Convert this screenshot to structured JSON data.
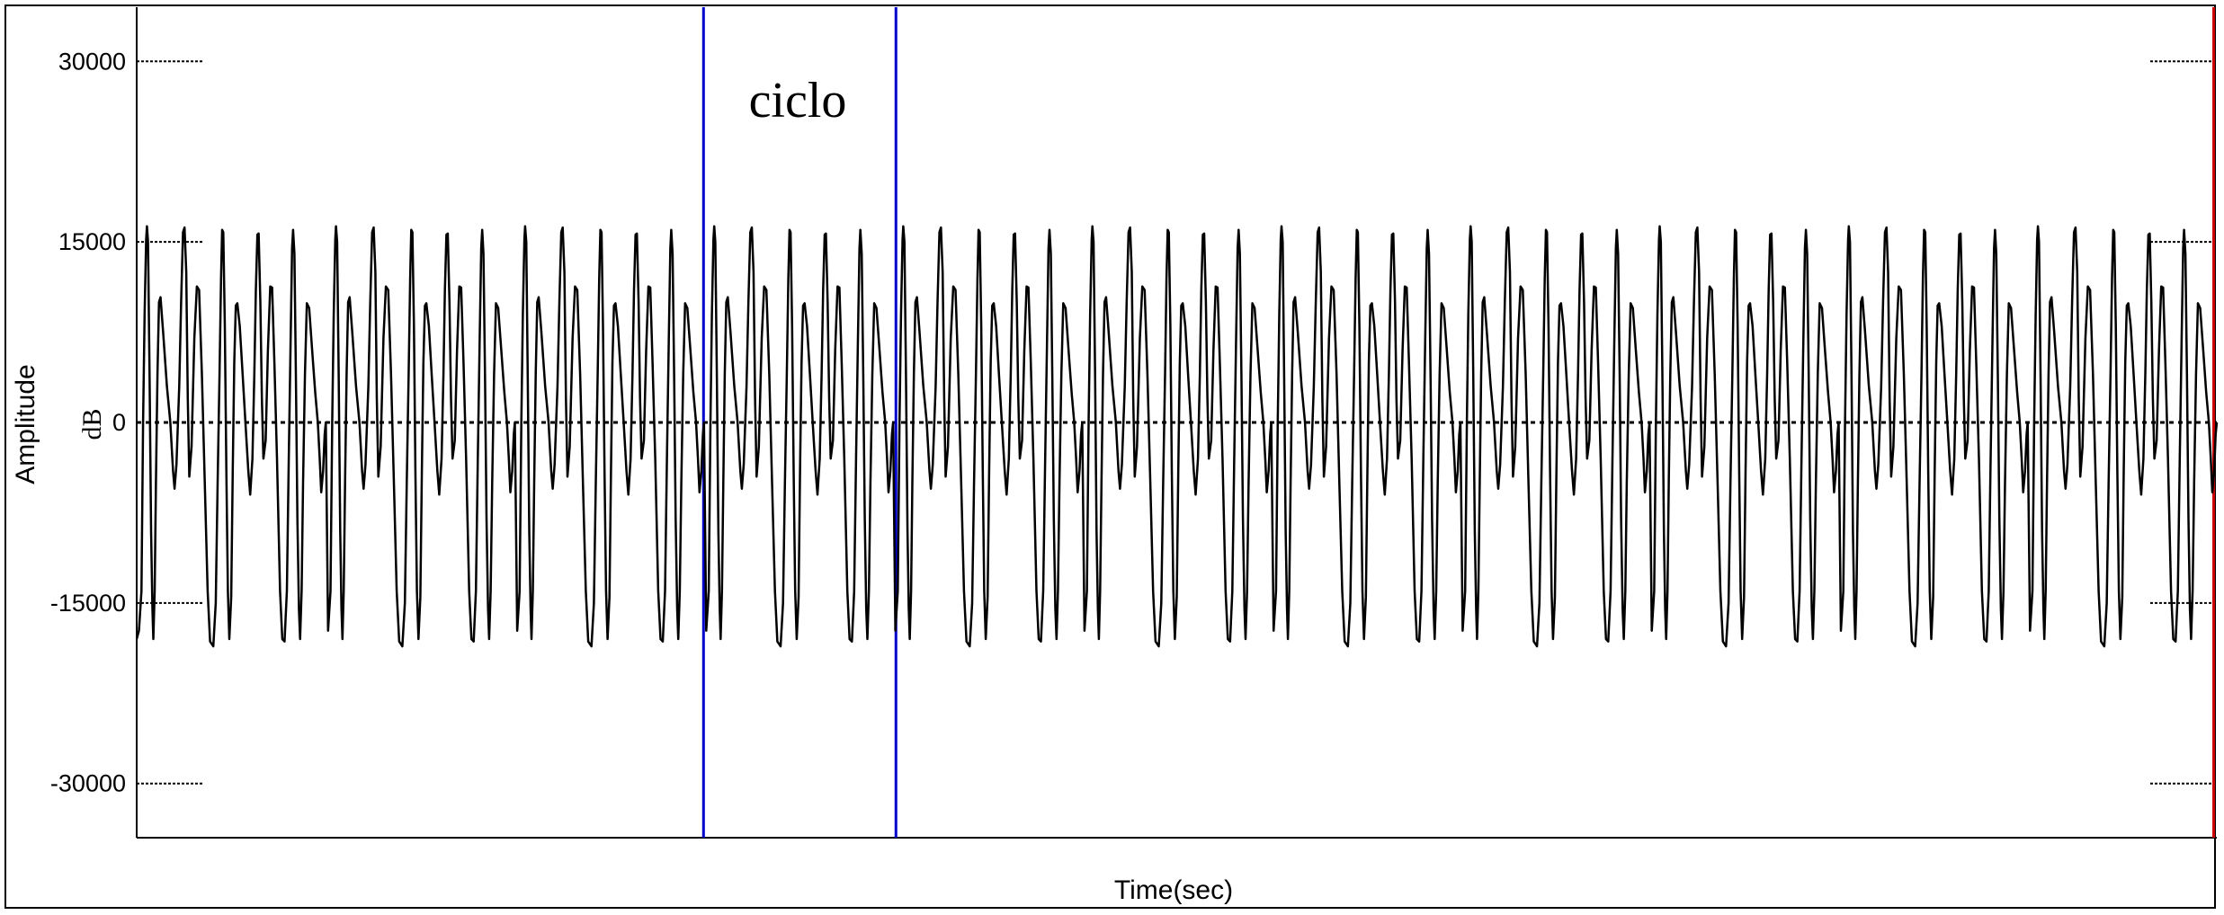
{
  "chart_data": {
    "type": "line",
    "title": "",
    "xlabel": "Time(sec)",
    "ylabel": "Amplitude",
    "ylabel_unit": "dB",
    "ylim": [
      -34500,
      34500
    ],
    "yticks": [
      30000,
      15000,
      0,
      -15000,
      -30000
    ],
    "ytick_labels": [
      "30000",
      "15000",
      "0",
      "-15000",
      "-30000"
    ],
    "xlim": [
      0,
      1
    ],
    "grid": false,
    "zero_line": "dotted",
    "annotation": "ciclo",
    "markers": [
      {
        "x": 0.2725,
        "color": "#0000cc"
      },
      {
        "x": 0.365,
        "color": "#0000cc"
      },
      {
        "x": 0.9985,
        "color": "#cc0000"
      }
    ],
    "cycles": 11,
    "cycle_shape": [
      [
        0.0,
        -18000
      ],
      [
        0.012,
        -17300
      ],
      [
        0.025,
        -14000
      ],
      [
        0.034,
        0
      ],
      [
        0.042,
        9000
      ],
      [
        0.05,
        15200
      ],
      [
        0.054,
        16300
      ],
      [
        0.06,
        15000
      ],
      [
        0.068,
        4000
      ],
      [
        0.076,
        -9000
      ],
      [
        0.083,
        -15500
      ],
      [
        0.088,
        -18000
      ],
      [
        0.095,
        -14000
      ],
      [
        0.102,
        -5000
      ],
      [
        0.11,
        4000
      ],
      [
        0.118,
        10000
      ],
      [
        0.126,
        10400
      ],
      [
        0.14,
        7500
      ],
      [
        0.16,
        3000
      ],
      [
        0.178,
        0
      ],
      [
        0.192,
        -4000
      ],
      [
        0.2,
        -5500
      ],
      [
        0.21,
        -3500
      ],
      [
        0.225,
        3000
      ],
      [
        0.235,
        10000
      ],
      [
        0.245,
        15800
      ],
      [
        0.253,
        16200
      ],
      [
        0.262,
        12500
      ],
      [
        0.27,
        2000
      ],
      [
        0.278,
        -4500
      ],
      [
        0.29,
        -2000
      ],
      [
        0.305,
        7000
      ],
      [
        0.318,
        11300
      ],
      [
        0.33,
        11000
      ],
      [
        0.345,
        4000
      ],
      [
        0.36,
        -5000
      ],
      [
        0.375,
        -14000
      ],
      [
        0.388,
        -18200
      ],
      [
        0.405,
        -18600
      ],
      [
        0.418,
        -15000
      ],
      [
        0.428,
        -5000
      ],
      [
        0.438,
        4000
      ],
      [
        0.446,
        12000
      ],
      [
        0.452,
        16000
      ],
      [
        0.458,
        15800
      ],
      [
        0.466,
        8000
      ],
      [
        0.474,
        -4000
      ],
      [
        0.482,
        -14000
      ],
      [
        0.49,
        -18000
      ],
      [
        0.5,
        -14500
      ],
      [
        0.508,
        -4000
      ],
      [
        0.516,
        5000
      ],
      [
        0.524,
        9700
      ],
      [
        0.532,
        9900
      ],
      [
        0.545,
        8000
      ],
      [
        0.56,
        4000
      ],
      [
        0.575,
        0
      ],
      [
        0.59,
        -4000
      ],
      [
        0.6,
        -6000
      ],
      [
        0.612,
        -3000
      ],
      [
        0.622,
        4000
      ],
      [
        0.63,
        11000
      ],
      [
        0.638,
        15600
      ],
      [
        0.645,
        15700
      ],
      [
        0.654,
        10000
      ],
      [
        0.662,
        2000
      ],
      [
        0.67,
        -3000
      ],
      [
        0.682,
        -1500
      ],
      [
        0.694,
        6000
      ],
      [
        0.706,
        11300
      ],
      [
        0.716,
        11200
      ],
      [
        0.728,
        5000
      ],
      [
        0.742,
        -3000
      ],
      [
        0.758,
        -14000
      ],
      [
        0.77,
        -18000
      ],
      [
        0.782,
        -18200
      ],
      [
        0.794,
        -14000
      ],
      [
        0.804,
        -3000
      ],
      [
        0.814,
        7000
      ],
      [
        0.822,
        14500
      ],
      [
        0.827,
        16000
      ],
      [
        0.834,
        14000
      ],
      [
        0.842,
        4000
      ],
      [
        0.85,
        -8000
      ],
      [
        0.858,
        -15500
      ],
      [
        0.864,
        -18000
      ],
      [
        0.872,
        -14000
      ],
      [
        0.88,
        -5000
      ],
      [
        0.89,
        4000
      ],
      [
        0.9,
        9900
      ],
      [
        0.912,
        9500
      ],
      [
        0.928,
        6000
      ],
      [
        0.944,
        2500
      ],
      [
        0.958,
        0
      ],
      [
        0.968,
        -3000
      ],
      [
        0.976,
        -5800
      ],
      [
        0.986,
        -4000
      ],
      [
        0.994,
        -1000
      ],
      [
        1.0,
        0
      ]
    ]
  }
}
